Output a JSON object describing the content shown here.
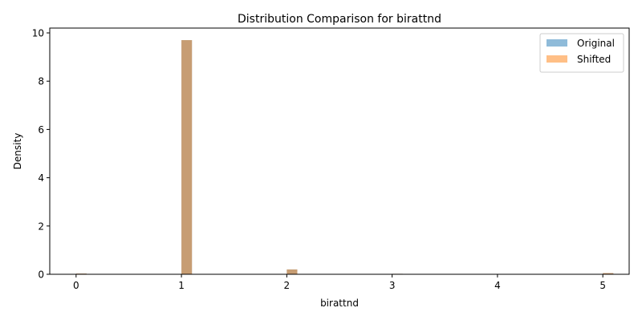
{
  "chart_data": {
    "type": "bar",
    "title": "Distribution Comparison for birattnd",
    "xlabel": "birattnd",
    "ylabel": "Density",
    "xlim": [
      -0.25,
      5.25
    ],
    "ylim": [
      0,
      10.2
    ],
    "bin_width": 0.1,
    "x_ticks": [
      0,
      1,
      2,
      3,
      4,
      5
    ],
    "y_ticks": [
      0,
      2,
      4,
      6,
      8,
      10
    ],
    "legend_position": "top-right",
    "series": [
      {
        "name": "Original",
        "color": "#1f77b4",
        "alpha": 0.5,
        "bins": [
          {
            "x": 0,
            "density": 0.03
          },
          {
            "x": 1,
            "density": 9.7
          },
          {
            "x": 2,
            "density": 0.2
          },
          {
            "x": 3,
            "density": 0.02
          },
          {
            "x": 5,
            "density": 0.05
          }
        ]
      },
      {
        "name": "Shifted",
        "color": "#ff7f0e",
        "alpha": 0.5,
        "bins": [
          {
            "x": 0,
            "density": 0.03
          },
          {
            "x": 1,
            "density": 9.7
          },
          {
            "x": 2,
            "density": 0.2
          },
          {
            "x": 3,
            "density": 0.02
          },
          {
            "x": 5,
            "density": 0.05
          }
        ]
      }
    ]
  }
}
